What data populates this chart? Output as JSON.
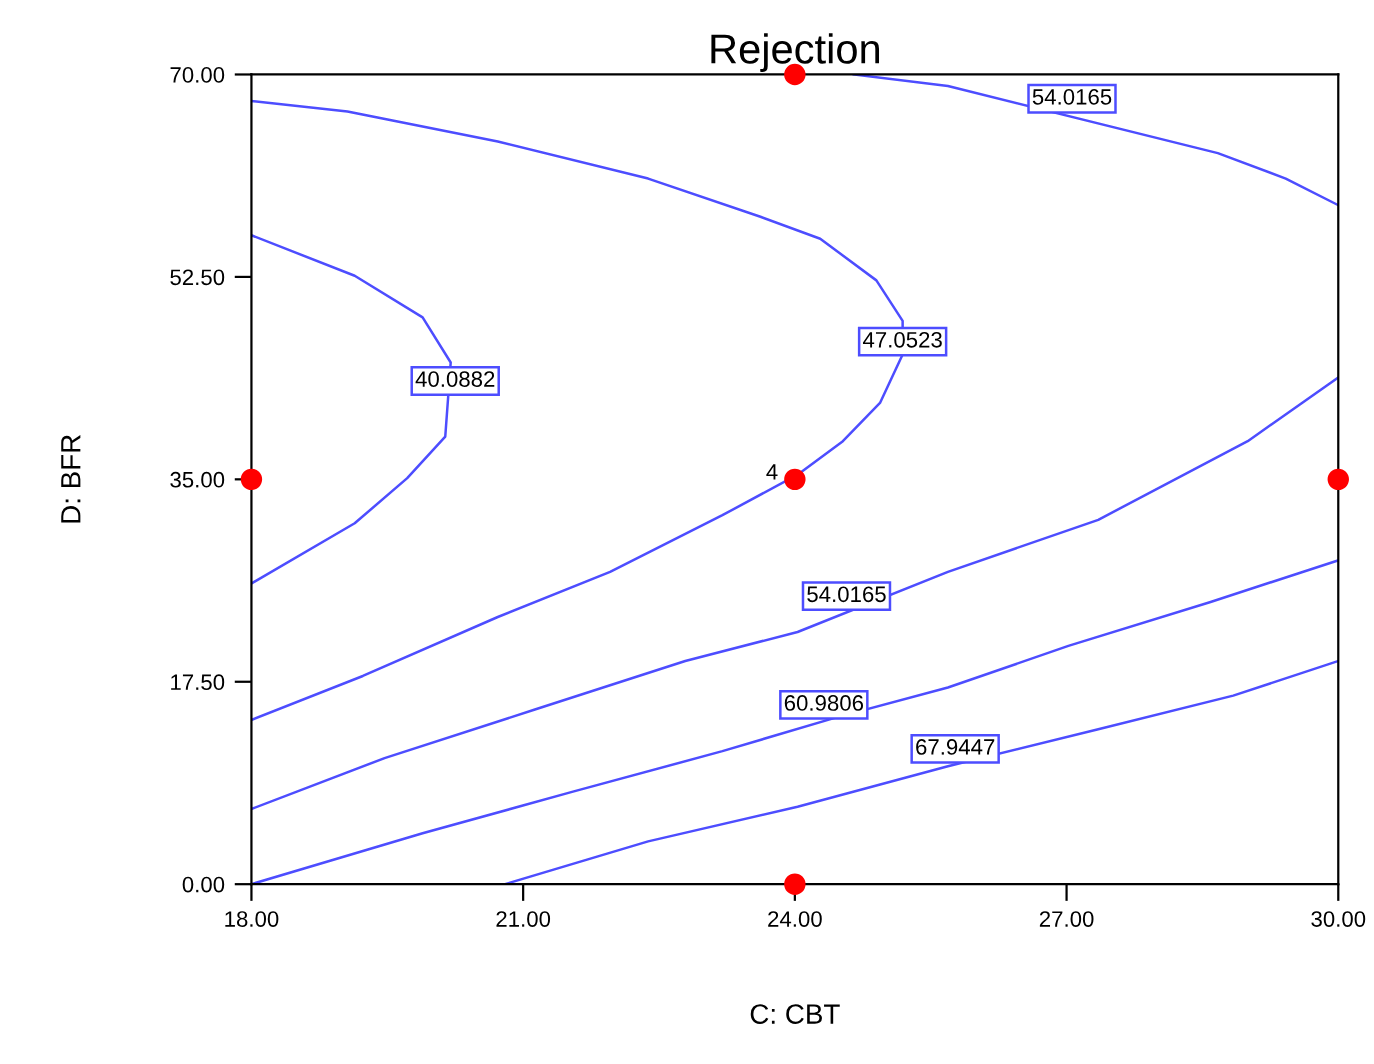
{
  "chart_data": {
    "type": "line",
    "title": "Rejection",
    "xlabel": "C: CBT",
    "ylabel": "D: BFR",
    "xlim": [
      18,
      30
    ],
    "ylim": [
      0,
      70
    ],
    "xticks": [
      {
        "value": 18,
        "label": "18.00"
      },
      {
        "value": 21,
        "label": "21.00"
      },
      {
        "value": 24,
        "label": "24.00"
      },
      {
        "value": 27,
        "label": "27.00"
      },
      {
        "value": 30,
        "label": "30.00"
      }
    ],
    "yticks": [
      {
        "value": 0,
        "label": "0.00"
      },
      {
        "value": 17.5,
        "label": "17.50"
      },
      {
        "value": 35,
        "label": "35.00"
      },
      {
        "value": 52.5,
        "label": "52.50"
      },
      {
        "value": 70,
        "label": "70.00"
      }
    ],
    "grid": false,
    "legend": false,
    "marker": "none",
    "line_style": "solid",
    "series": [
      {
        "color": "#4d4dff",
        "x": [
          18,
          19.14,
          19.89,
          20.2,
          20.14,
          19.72,
          19.14,
          18
        ],
        "values": [
          56.1,
          52.6,
          49.0,
          45.1,
          38.7,
          35.1,
          31.2,
          26.0
        ]
      },
      {
        "color": "#4d4dff",
        "x": [
          18,
          19.06,
          20.72,
          22.38,
          23.62,
          24.28,
          24.9,
          25.19,
          25.19,
          24.94,
          24.53,
          24.03,
          23.2,
          21.96,
          20.72,
          19.23,
          18
        ],
        "values": [
          67.7,
          66.8,
          64.2,
          61.0,
          57.7,
          55.8,
          52.2,
          48.7,
          45.8,
          41.6,
          38.3,
          35.4,
          31.9,
          27.0,
          23.1,
          18.0,
          14.2
        ]
      },
      {
        "color": "#4d4dff",
        "x": [
          24.65,
          25.69,
          28.67,
          29.42,
          30
        ],
        "values": [
          70,
          69.0,
          63.2,
          61.0,
          58.7
        ]
      },
      {
        "color": "#4d4dff",
        "x": [
          18,
          19.47,
          21.13,
          22.79,
          24.03,
          25.69,
          27.35,
          29.0,
          30
        ],
        "values": [
          6.5,
          10.9,
          15.1,
          19.3,
          21.8,
          27.0,
          31.5,
          38.3,
          43.8
        ]
      },
      {
        "color": "#4d4dff",
        "x": [
          18,
          19.89,
          21.55,
          23.2,
          24.45,
          25.69,
          27.02,
          28.59,
          30
        ],
        "values": [
          0,
          4.4,
          8.0,
          11.5,
          14.4,
          17.0,
          20.6,
          24.4,
          28.0
        ]
      },
      {
        "color": "#4d4dff",
        "x": [
          20.8,
          22.38,
          24.03,
          25.69,
          27.35,
          28.84,
          30
        ],
        "values": [
          0,
          3.7,
          6.7,
          10.2,
          13.4,
          16.3,
          19.3
        ]
      },
      {
        "type": "scatter",
        "marker": "circle",
        "color": "#ff0000",
        "x": [
          24,
          18,
          24,
          30,
          24
        ],
        "values": [
          70,
          35,
          35,
          35,
          0
        ]
      }
    ],
    "annotations": [
      {
        "text": "54.0165",
        "x": 27.06,
        "y": 67.9
      },
      {
        "text": "47.0523",
        "x": 25.19,
        "y": 46.9
      },
      {
        "text": "40.0882",
        "x": 20.25,
        "y": 43.5
      },
      {
        "text": "54.0165",
        "x": 24.57,
        "y": 24.9
      },
      {
        "text": "60.9806",
        "x": 24.32,
        "y": 15.5
      },
      {
        "text": "67.9447",
        "x": 25.77,
        "y": 11.7
      },
      {
        "text": "4",
        "x": 24,
        "y": 35
      }
    ]
  }
}
